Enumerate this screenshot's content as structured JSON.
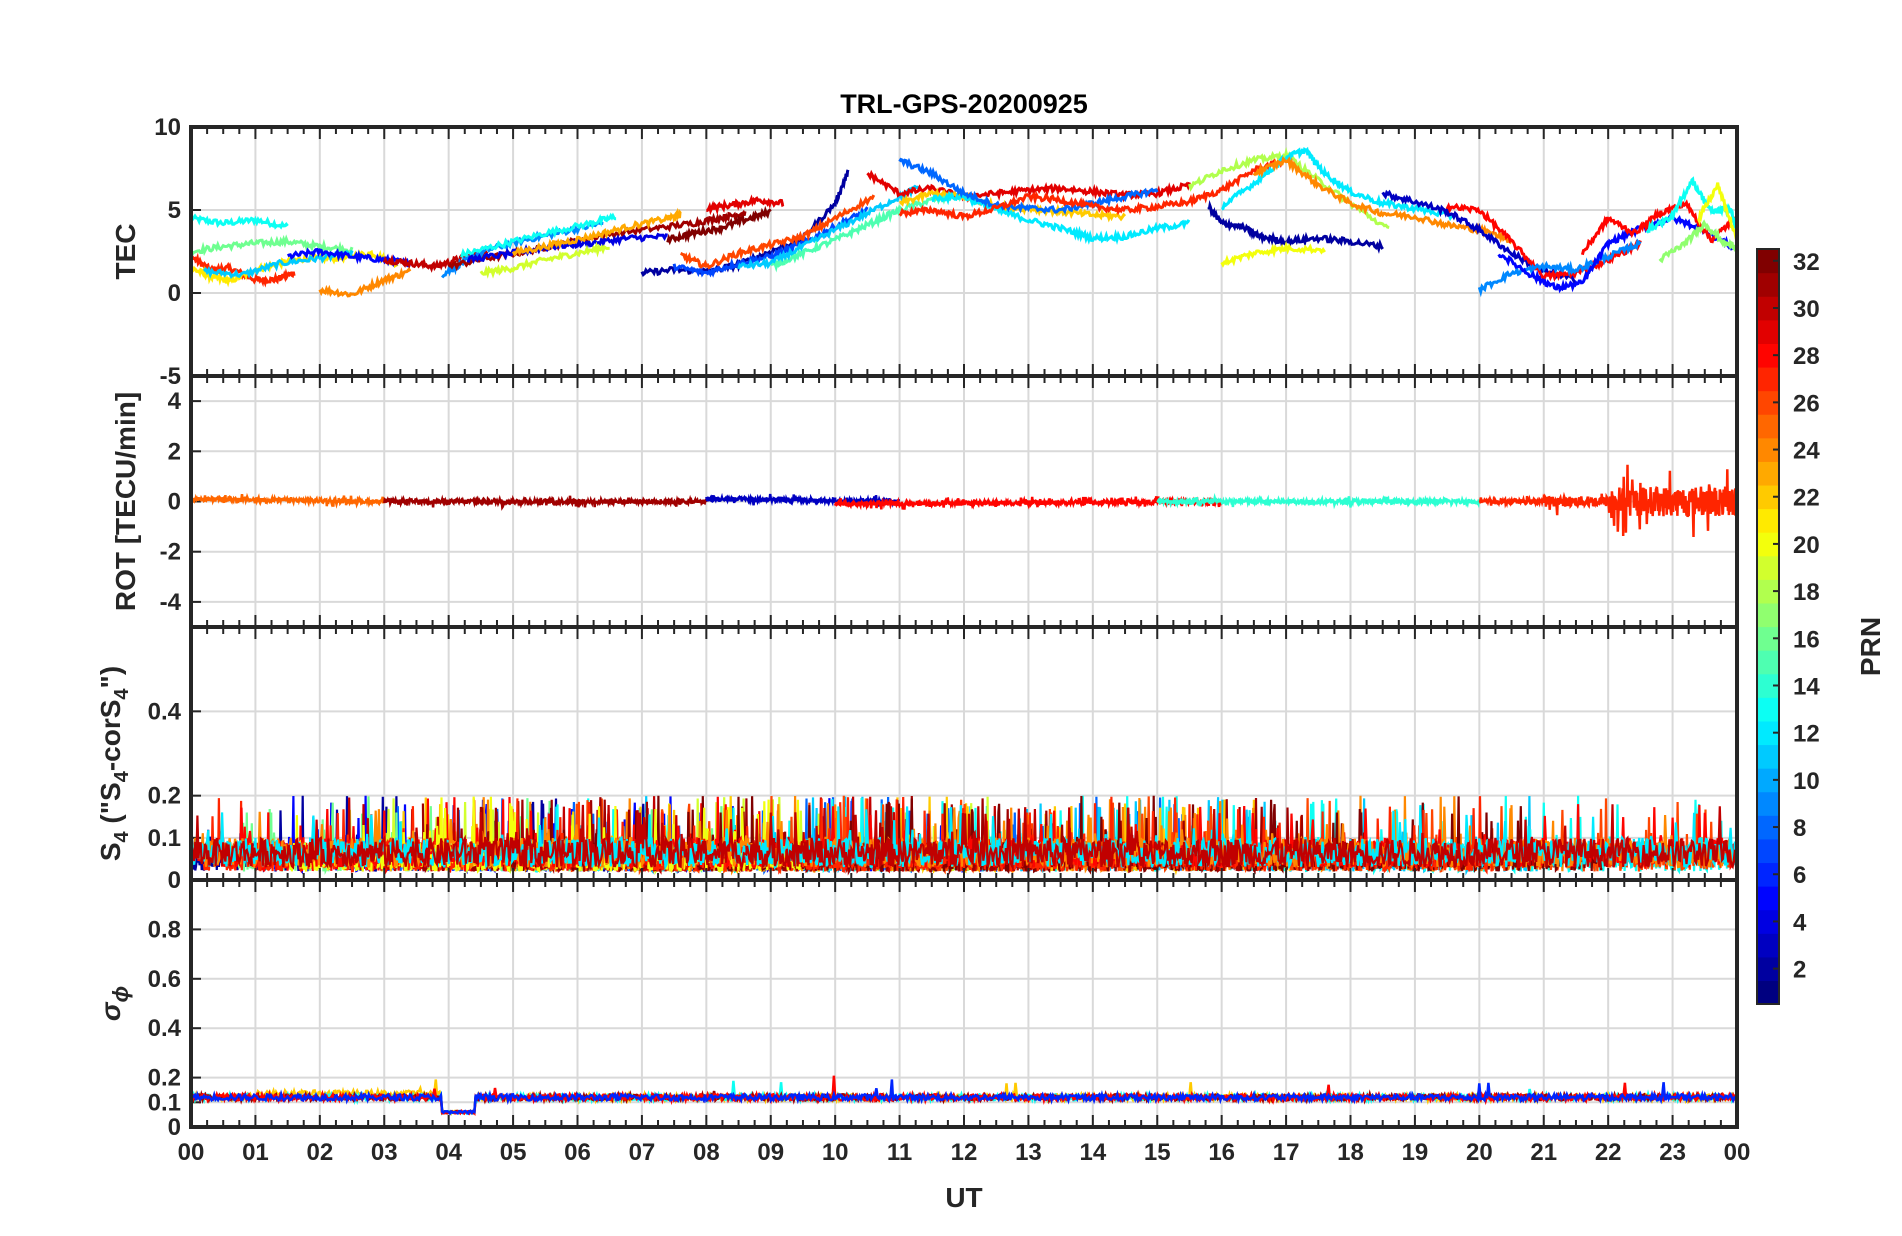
{
  "chart_data": {
    "type": "line",
    "title": "TRL-GPS-20200925",
    "xlabel": "UT",
    "x_tick_labels": [
      "00",
      "01",
      "02",
      "03",
      "04",
      "05",
      "06",
      "07",
      "08",
      "09",
      "10",
      "11",
      "12",
      "13",
      "14",
      "15",
      "16",
      "17",
      "18",
      "19",
      "20",
      "21",
      "22",
      "23",
      "00"
    ],
    "xlim": [
      0,
      24
    ],
    "grid": true,
    "colormap": "jet",
    "colorbar": {
      "label": "PRN",
      "range": [
        1,
        32
      ],
      "tick_labels": [
        "2",
        "4",
        "6",
        "8",
        "10",
        "12",
        "14",
        "16",
        "18",
        "20",
        "22",
        "24",
        "26",
        "28",
        "30",
        "32"
      ]
    },
    "panels": [
      {
        "ylabel": "TEC",
        "ylim": [
          -5,
          10
        ],
        "y_tick_labels": [
          "-5",
          "0",
          "5",
          "10"
        ],
        "series": [
          {
            "prn": 13,
            "x": [
              0,
              0.5,
              1,
              1.5
            ],
            "y": [
              4.5,
              4.2,
              4.4,
              4.0
            ]
          },
          {
            "prn": 27,
            "x": [
              0,
              0.3,
              0.6,
              1,
              1.3,
              1.6
            ],
            "y": [
              2.2,
              1.4,
              1.5,
              0.8,
              0.8,
              1.2
            ]
          },
          {
            "prn": 21,
            "x": [
              0,
              0.3,
              0.6,
              1,
              1.4,
              1.8,
              2.3,
              2.8,
              3.2
            ],
            "y": [
              1.5,
              1.0,
              0.7,
              1.4,
              1.8,
              2.1,
              2.1,
              2.4,
              1.7
            ]
          },
          {
            "prn": 16,
            "x": [
              0,
              0.5,
              1,
              1.5,
              2,
              2.5
            ],
            "y": [
              2.5,
              2.8,
              3.0,
              3.1,
              2.8,
              2.6
            ]
          },
          {
            "prn": 11,
            "x": [
              0.2,
              0.8,
              1.4,
              2,
              2.5
            ],
            "y": [
              1.3,
              1.1,
              1.8,
              2.1,
              2.4
            ]
          },
          {
            "prn": 5,
            "x": [
              1.5,
              2,
              2.5,
              3,
              3.4
            ],
            "y": [
              2.2,
              2.5,
              2.2,
              2.0,
              1.8
            ]
          },
          {
            "prn": 24,
            "x": [
              2,
              2.5,
              3,
              3.4
            ],
            "y": [
              0.2,
              -0.1,
              0.8,
              1.3
            ]
          },
          {
            "prn": 30,
            "x": [
              3,
              3.4,
              3.8,
              4.2,
              4.6
            ],
            "y": [
              2.0,
              1.8,
              1.6,
              2.1,
              2.4
            ]
          },
          {
            "prn": 9,
            "x": [
              3.9,
              4.2,
              4.6,
              5.2,
              5.8,
              6.4
            ],
            "y": [
              1.1,
              1.8,
              2.6,
              3.2,
              3.7,
              4.2
            ]
          },
          {
            "prn": 13,
            "x": [
              4.2,
              4.8,
              5.5,
              6.2,
              6.6
            ],
            "y": [
              2.3,
              2.9,
              3.6,
              4.2,
              4.6
            ]
          },
          {
            "prn": 31,
            "x": [
              4,
              4.6,
              5.2,
              5.8,
              6.4,
              7.2,
              7.8,
              8.3,
              8.6
            ],
            "y": [
              1.6,
              2.1,
              2.5,
              3.0,
              3.5,
              3.9,
              4.2,
              4.6,
              4.8
            ]
          },
          {
            "prn": 4,
            "x": [
              4.3,
              5,
              5.6,
              6.2,
              6.8,
              7.4
            ],
            "y": [
              2.0,
              2.4,
              2.8,
              3.0,
              3.3,
              3.4
            ]
          },
          {
            "prn": 19,
            "x": [
              4.5,
              5,
              5.5,
              6,
              6.5
            ],
            "y": [
              1.2,
              1.5,
              2.0,
              2.4,
              2.8
            ]
          },
          {
            "prn": 23,
            "x": [
              5,
              5.6,
              6.2,
              6.8,
              7.4,
              7.6
            ],
            "y": [
              2.4,
              2.9,
              3.4,
              4.0,
              4.5,
              4.7
            ]
          },
          {
            "prn": 32,
            "x": [
              7.4,
              7.8,
              8.2,
              8.6,
              9
            ],
            "y": [
              3.2,
              3.6,
              3.9,
              4.4,
              4.9
            ]
          },
          {
            "prn": 29,
            "x": [
              8,
              8.4,
              8.8,
              9.2
            ],
            "y": [
              5.1,
              5.3,
              5.6,
              5.4
            ]
          },
          {
            "prn": 2,
            "x": [
              7,
              7.5,
              8,
              8.5,
              9,
              9.5,
              10,
              10.2
            ],
            "y": [
              1.2,
              1.4,
              1.3,
              1.7,
              2.5,
              3.3,
              5.4,
              7.3
            ]
          },
          {
            "prn": 7,
            "x": [
              7.5,
              8,
              8.5,
              9,
              9.5,
              10,
              10.5
            ],
            "y": [
              1.6,
              1.2,
              1.8,
              2.2,
              3.0,
              4.0,
              5.0
            ]
          },
          {
            "prn": 26,
            "x": [
              7.6,
              8,
              8.5,
              9,
              9.5,
              10,
              10.6
            ],
            "y": [
              2.3,
              1.6,
              2.4,
              2.9,
              3.4,
              4.5,
              5.8
            ]
          },
          {
            "prn": 15,
            "x": [
              9,
              9.5,
              10,
              10.5,
              11,
              11.5,
              12
            ],
            "y": [
              1.6,
              2.4,
              3.2,
              4.1,
              5.0,
              5.6,
              5.9
            ]
          },
          {
            "prn": 11,
            "x": [
              8.5,
              9,
              9.6,
              10.2,
              10.8,
              11.3
            ],
            "y": [
              1.6,
              1.8,
              3.0,
              4.2,
              5.4,
              6.4
            ]
          },
          {
            "prn": 29,
            "x": [
              10.5,
              11,
              11.5,
              12,
              12.5,
              13,
              13.5,
              14,
              14.5,
              15,
              15.5
            ],
            "y": [
              7.2,
              6.0,
              6.3,
              5.8,
              6.0,
              6.2,
              6.3,
              6.1,
              5.9,
              6.0,
              6.5
            ]
          },
          {
            "prn": 22,
            "x": [
              11,
              11.5,
              12,
              12.5,
              13,
              13.5,
              14,
              14.5
            ],
            "y": [
              5.4,
              6.0,
              5.8,
              5.2,
              5.1,
              4.9,
              4.7,
              4.6
            ]
          },
          {
            "prn": 12,
            "x": [
              11.5,
              12,
              12.5,
              13,
              13.5,
              14,
              14.5,
              15,
              15.5
            ],
            "y": [
              5.7,
              5.8,
              5.0,
              4.4,
              3.9,
              3.3,
              3.4,
              3.9,
              4.2
            ]
          },
          {
            "prn": 8,
            "x": [
              11,
              11.5,
              12,
              12.5,
              13,
              13.5,
              14,
              14.5,
              15
            ],
            "y": [
              8.0,
              7.2,
              6.0,
              5.3,
              5.1,
              5.0,
              5.4,
              5.8,
              6.2
            ]
          },
          {
            "prn": 27,
            "x": [
              11,
              11.5,
              12,
              12.5,
              13,
              13.5,
              14,
              14.5,
              15,
              15.5,
              16,
              16.5,
              17
            ],
            "y": [
              4.8,
              5.0,
              4.6,
              5.1,
              5.8,
              5.6,
              5.2,
              5.0,
              5.2,
              5.5,
              6.2,
              7.4,
              8.0
            ]
          },
          {
            "prn": 2,
            "x": [
              15.8,
              16,
              16.3,
              16.6,
              17,
              17.5,
              18,
              18.5
            ],
            "y": [
              5.2,
              4.2,
              4.0,
              3.4,
              3.1,
              3.3,
              3.1,
              2.8
            ]
          },
          {
            "prn": 20,
            "x": [
              16,
              16.5,
              17,
              17.6
            ],
            "y": [
              1.8,
              2.4,
              2.7,
              2.6
            ]
          },
          {
            "prn": 18,
            "x": [
              15.5,
              16,
              16.5,
              17,
              17.5,
              18,
              18.6
            ],
            "y": [
              6.4,
              7.4,
              8.0,
              8.3,
              6.8,
              5.4,
              3.8
            ]
          },
          {
            "prn": 12,
            "x": [
              16,
              16.5,
              17,
              17.3,
              17.6,
              18,
              18.5,
              19,
              19.6
            ],
            "y": [
              5.2,
              6.6,
              8.2,
              8.6,
              7.2,
              6.1,
              5.4,
              5.1,
              4.6
            ]
          },
          {
            "prn": 24,
            "x": [
              16.5,
              17,
              17.5,
              18,
              18.5,
              19,
              19.5,
              20,
              20.5
            ],
            "y": [
              7.2,
              8.0,
              6.5,
              5.4,
              4.8,
              4.6,
              4.1,
              3.8,
              3.2
            ]
          },
          {
            "prn": 3,
            "x": [
              18.5,
              19,
              19.5,
              20,
              20.5,
              21,
              21.5
            ],
            "y": [
              6.0,
              5.5,
              4.9,
              3.8,
              2.4,
              1.3,
              0.8
            ]
          },
          {
            "prn": 28,
            "x": [
              19.5,
              20,
              20.5,
              21,
              21.5,
              22,
              22.5
            ],
            "y": [
              5.2,
              5.0,
              3.1,
              1.0,
              1.2,
              2.0,
              3.0
            ]
          },
          {
            "prn": 9,
            "x": [
              20,
              20.5,
              21,
              21.5,
              22,
              22.5
            ],
            "y": [
              0.2,
              1.2,
              1.6,
              1.4,
              2.2,
              3.0
            ]
          },
          {
            "prn": 5,
            "x": [
              20.3,
              20.8,
              21.2,
              21.6,
              22,
              22.5,
              23,
              23.5,
              24
            ],
            "y": [
              2.4,
              1.1,
              0.3,
              0.6,
              3.0,
              3.9,
              4.5,
              3.8,
              2.6
            ]
          },
          {
            "prn": 28,
            "x": [
              21.6,
              22,
              22.4,
              22.8,
              23.2,
              23.6,
              24
            ],
            "y": [
              2.4,
              4.5,
              3.6,
              4.8,
              5.4,
              3.2,
              4.6
            ]
          },
          {
            "prn": 13,
            "x": [
              22.6,
              23,
              23.3,
              23.6,
              23.9,
              24
            ],
            "y": [
              3.8,
              4.6,
              6.8,
              4.9,
              5.1,
              3.6
            ]
          },
          {
            "prn": 17,
            "x": [
              22.8,
              23.2,
              23.5,
              23.8,
              24
            ],
            "y": [
              2.0,
              3.0,
              4.2,
              3.0,
              2.8
            ]
          },
          {
            "prn": 20,
            "x": [
              23.4,
              23.7,
              24
            ],
            "y": [
              4.4,
              6.5,
              3.2
            ]
          }
        ]
      },
      {
        "ylabel": "ROT [TECU/min]",
        "ylim": [
          -5,
          5
        ],
        "y_tick_labels": [
          "-4",
          "-2",
          "0",
          "2",
          "4"
        ],
        "series": [
          {
            "prn": 25,
            "x": [
              0,
              3
            ],
            "y": [
              0.1,
              0.0
            ]
          },
          {
            "prn": 31,
            "x": [
              3,
              8
            ],
            "y": [
              0.0,
              0.0
            ]
          },
          {
            "prn": 3,
            "x": [
              8,
              11
            ],
            "y": [
              0.1,
              0.0
            ]
          },
          {
            "prn": 28,
            "x": [
              10,
              16
            ],
            "y": [
              -0.1,
              0.0
            ]
          },
          {
            "prn": 14,
            "x": [
              15,
              20
            ],
            "y": [
              0.0,
              0.0
            ]
          },
          {
            "prn": 27,
            "x": [
              20,
              24
            ],
            "y": [
              0.0,
              0.0
            ]
          }
        ],
        "noise_amplitude": [
          {
            "x_range": [
              0,
              21
            ],
            "amplitude": 0.15
          },
          {
            "x_range": [
              21,
              22
            ],
            "amplitude": 0.35
          },
          {
            "x_range": [
              22,
              24
            ],
            "amplitude": 1.0
          }
        ]
      },
      {
        "ylabel_main": "S",
        "ylabel_sub": "4",
        "ylabel_mid": " (\"S",
        "ylabel_mid2": "-corS",
        "ylabel_end": "\")",
        "ylim": [
          0,
          0.6
        ],
        "y_tick_labels": [
          "0",
          "0.1",
          "0.2",
          "0.4"
        ],
        "typical_range": [
          0.02,
          0.12
        ],
        "max_value": 0.2
      },
      {
        "ylabel": "σ",
        "ylabel_sub": "ϕ",
        "ylim": [
          0,
          1
        ],
        "y_tick_labels": [
          "0",
          "0.1",
          "0.2",
          "0.4",
          "0.6",
          "0.8"
        ],
        "baseline": 0.12,
        "dip": {
          "x_range": [
            3.9,
            4.4
          ],
          "value": 0.06
        },
        "max_value": 0.21
      }
    ]
  }
}
